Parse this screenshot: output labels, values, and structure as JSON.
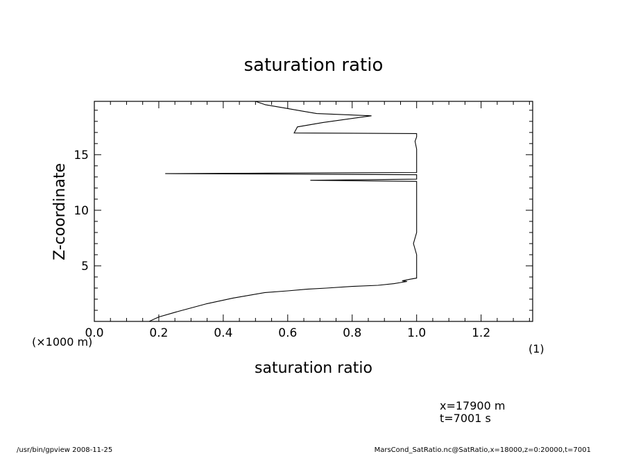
{
  "chart_data": {
    "type": "line",
    "title": "saturation ratio",
    "xlabel": "saturation ratio",
    "ylabel": "Z-coordinate",
    "x_unit_note": "(1)",
    "y_unit_note": "(×1000 m)",
    "xlim": [
      0.0,
      1.36
    ],
    "ylim": [
      0.0,
      19.8
    ],
    "x_ticks": [
      0.0,
      0.2,
      0.4,
      0.6,
      0.8,
      1.0,
      1.2
    ],
    "x_tick_labels": [
      "0.0",
      "0.2",
      "0.4",
      "0.6",
      "0.8",
      "1.0",
      "1.2"
    ],
    "y_ticks": [
      5,
      10,
      15
    ],
    "y_tick_labels": [
      "5",
      "10",
      "15"
    ],
    "grid": false,
    "series": [
      {
        "x": [
          0.17,
          0.2,
          0.26,
          0.35,
          0.43,
          0.53,
          0.6,
          0.66,
          0.72,
          0.8,
          0.88,
          0.93,
          0.95,
          0.97,
          0.955,
          0.98,
          1.0,
          1.0,
          1.0,
          0.995,
          0.99,
          1.0,
          1.0,
          1.0,
          1.0,
          1.0,
          0.67,
          1.0,
          1.0,
          0.22,
          1.0,
          1.0,
          1.0,
          1.0,
          0.995,
          1.0,
          1.0,
          1.0,
          0.62,
          0.63,
          0.71,
          0.86,
          0.69,
          0.65,
          0.59,
          0.53,
          0.5
        ],
        "y": [
          0.0,
          0.4,
          0.9,
          1.6,
          2.1,
          2.6,
          2.75,
          2.9,
          3.0,
          3.15,
          3.25,
          3.4,
          3.5,
          3.6,
          3.65,
          3.8,
          3.9,
          5.0,
          6.0,
          6.5,
          7.0,
          8.0,
          10.0,
          11.0,
          12.0,
          12.6,
          12.7,
          12.8,
          13.2,
          13.3,
          13.4,
          14.0,
          15.0,
          15.5,
          16.2,
          16.6,
          16.8,
          16.9,
          16.95,
          17.5,
          17.9,
          18.5,
          18.7,
          18.9,
          19.2,
          19.5,
          19.8
        ]
      }
    ]
  },
  "annotations": {
    "x_position": "x=17900  m",
    "t_value": "t=7001  s"
  },
  "footer": {
    "left": "/usr/bin/gpview   2008-11-25",
    "right": "MarsCond_SatRatio.nc@SatRatio,x=18000,z=0:20000,t=7001"
  },
  "colors": {
    "line": "#000000",
    "background": "#ffffff"
  }
}
